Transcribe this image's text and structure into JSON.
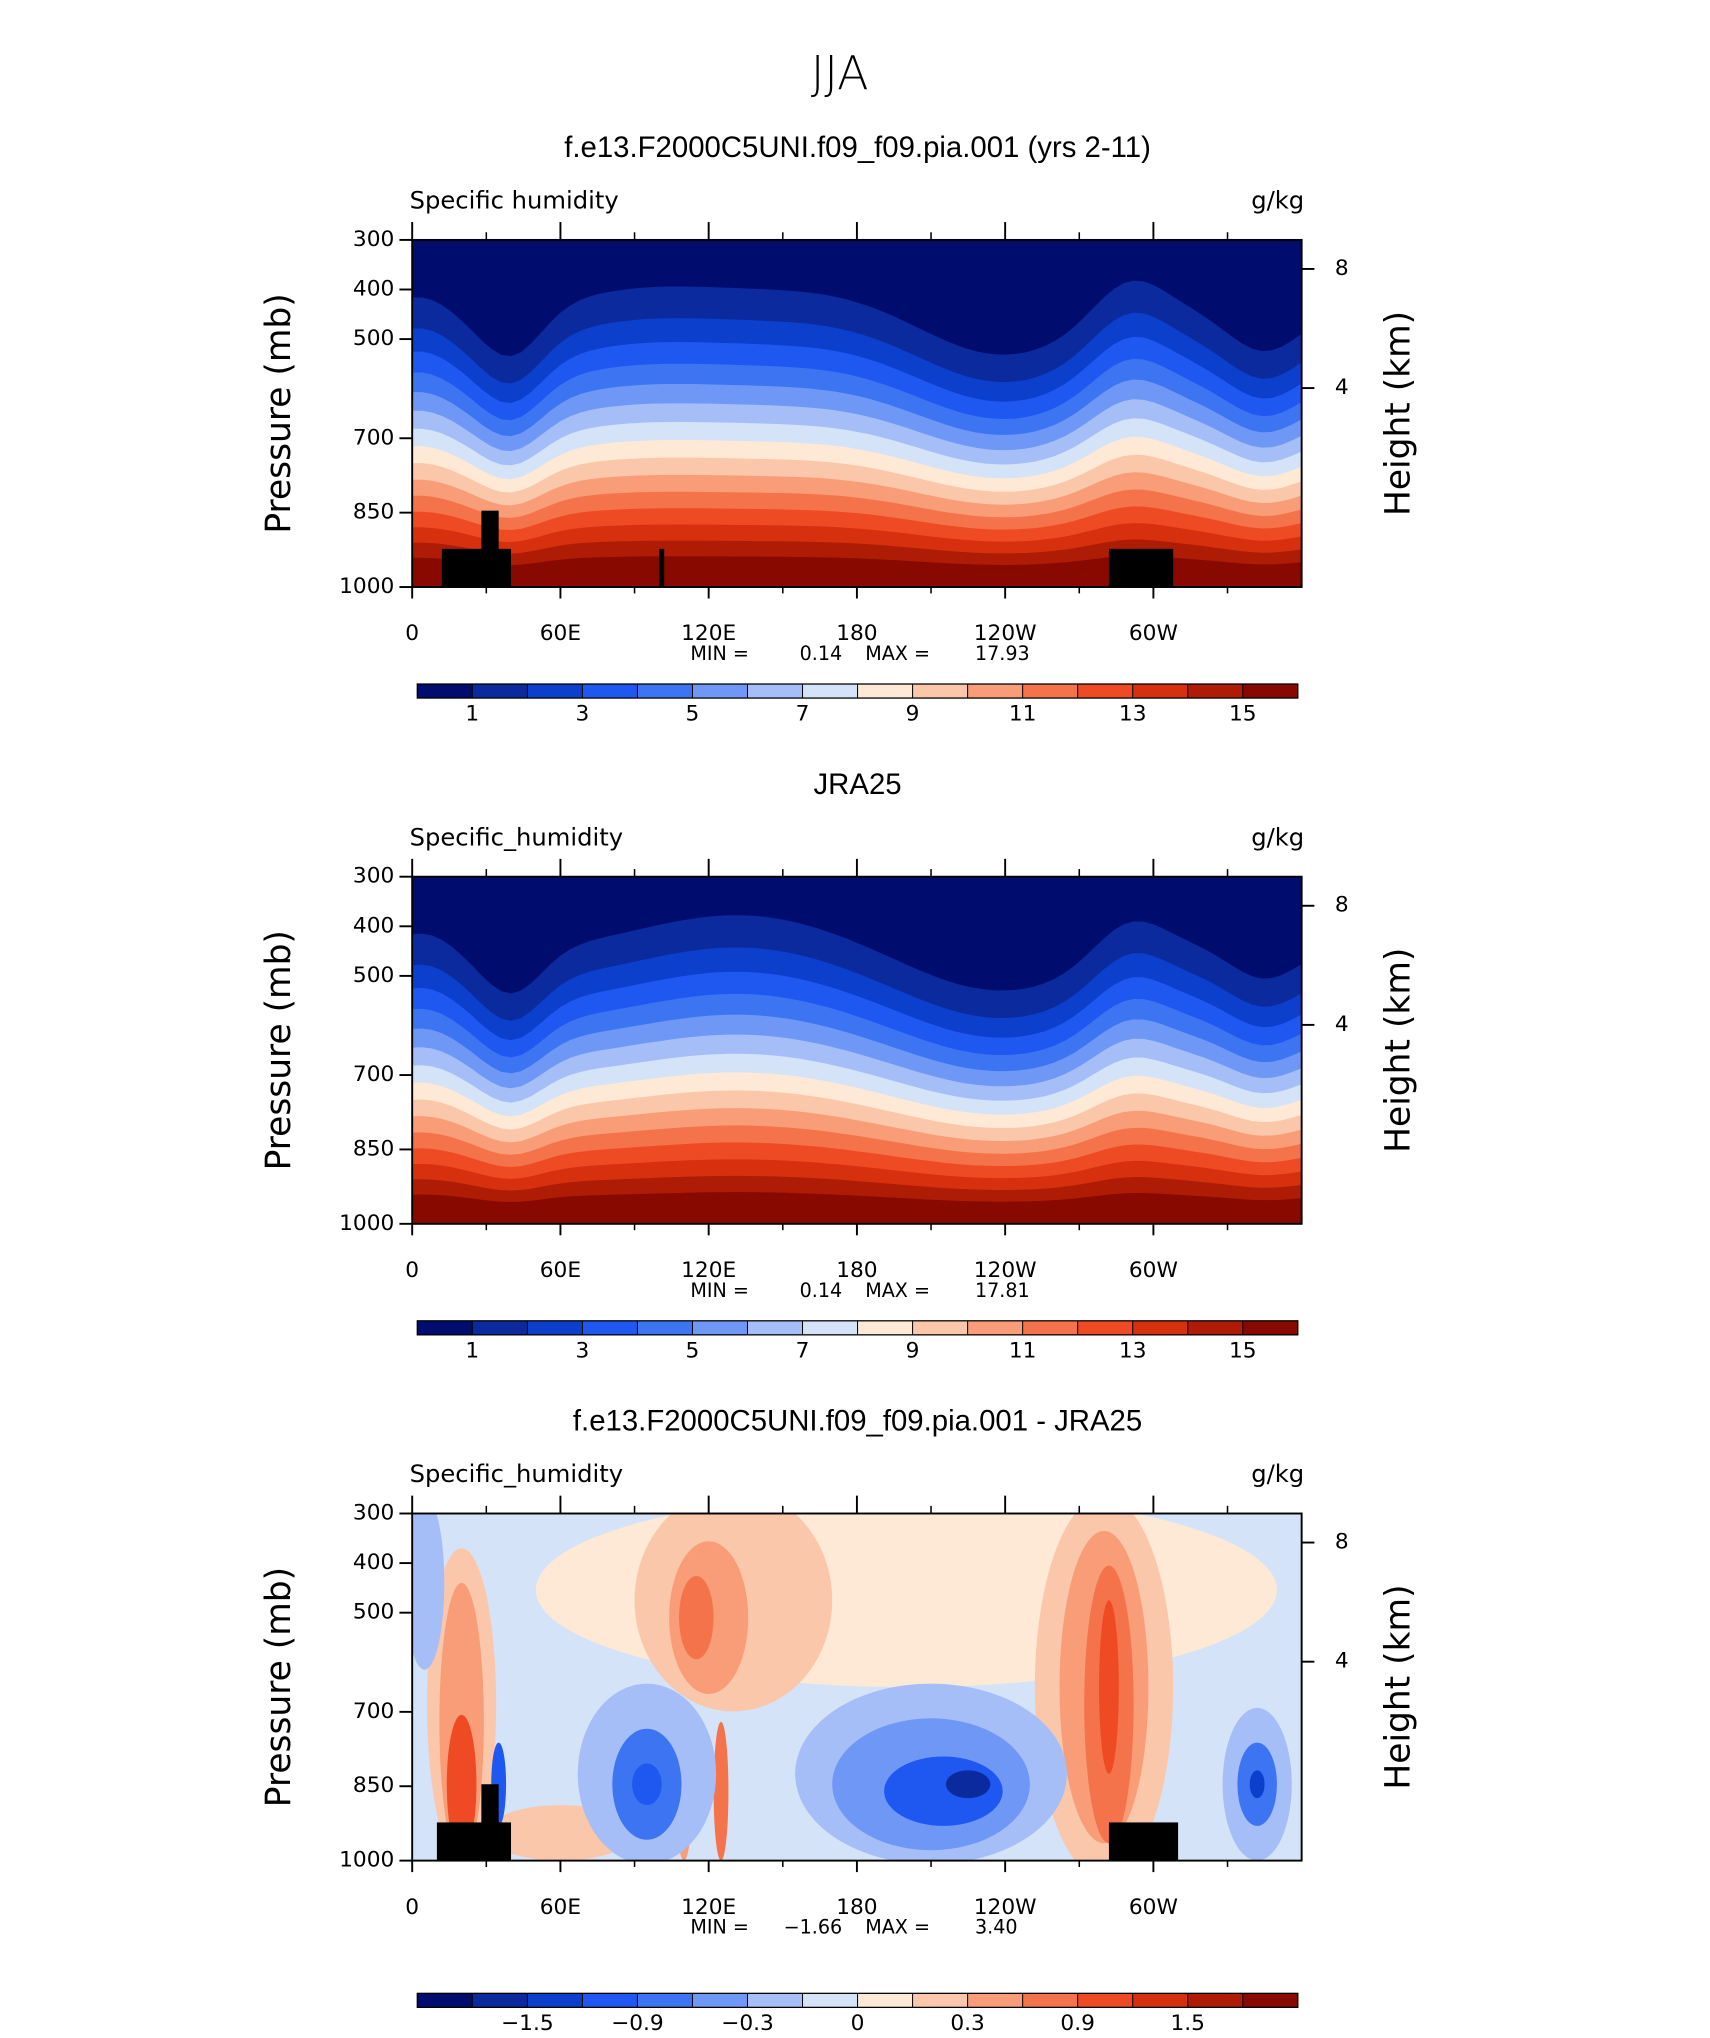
{
  "page_title": "JJA",
  "chart_data": [
    {
      "type": "contour",
      "title": "f.e13.F2000C5UNI.f09_f09.pia.001 (yrs 2-11)",
      "left_label": "Specific humidity",
      "right_label": "g/kg",
      "ylabel": "Pressure (mb)",
      "y2label": "Height (km)",
      "xlim": [
        0,
        360
      ],
      "xticks": [
        0,
        {
          "value": 60,
          "label": "60E"
        },
        {
          "value": 120,
          "label": "120E"
        },
        180,
        {
          "value": 240,
          "label": "120W"
        },
        {
          "value": 300,
          "label": "60W"
        }
      ],
      "xminorticks": [
        30,
        90,
        150,
        210,
        270,
        330
      ],
      "ylim": [
        300,
        1000
      ],
      "yticks": [
        300,
        400,
        500,
        700,
        850,
        1000
      ],
      "y_inverted": true,
      "y2ticks": [
        8,
        4
      ],
      "min_label": "MIN =",
      "min": 0.14,
      "max_label": "MAX =",
      "max": 17.93,
      "levels": [
        1,
        2,
        3,
        4,
        5,
        6,
        7,
        8,
        9,
        10,
        11,
        12,
        13,
        14,
        15
      ],
      "colorbar_ticks": [
        1,
        3,
        5,
        7,
        9,
        11,
        13,
        15
      ],
      "colors": [
        "#000d6e",
        "#0a2a9e",
        "#0b3fcc",
        "#1f58f0",
        "#3d74f2",
        "#6f97f5",
        "#a5bef7",
        "#d4e3f7",
        "#fde9d6",
        "#fbc7aa",
        "#f89d77",
        "#f4734b",
        "#ee4b25",
        "#d6300f",
        "#ae1c06",
        "#880900"
      ]
    },
    {
      "type": "contour",
      "title": "JRA25",
      "left_label": "Specific_humidity",
      "right_label": "g/kg",
      "ylabel": "Pressure (mb)",
      "y2label": "Height (km)",
      "xlim": [
        0,
        360
      ],
      "xticks": [
        0,
        {
          "value": 60,
          "label": "60E"
        },
        {
          "value": 120,
          "label": "120E"
        },
        180,
        {
          "value": 240,
          "label": "120W"
        },
        {
          "value": 300,
          "label": "60W"
        }
      ],
      "xminorticks": [
        30,
        90,
        150,
        210,
        270,
        330
      ],
      "ylim": [
        300,
        1000
      ],
      "yticks": [
        300,
        400,
        500,
        700,
        850,
        1000
      ],
      "y_inverted": true,
      "y2ticks": [
        8,
        4
      ],
      "min_label": "MIN =",
      "min": 0.14,
      "max_label": "MAX =",
      "max": 17.81,
      "levels": [
        1,
        2,
        3,
        4,
        5,
        6,
        7,
        8,
        9,
        10,
        11,
        12,
        13,
        14,
        15
      ],
      "colorbar_ticks": [
        1,
        3,
        5,
        7,
        9,
        11,
        13,
        15
      ],
      "colors": [
        "#000d6e",
        "#0a2a9e",
        "#0b3fcc",
        "#1f58f0",
        "#3d74f2",
        "#6f97f5",
        "#a5bef7",
        "#d4e3f7",
        "#fde9d6",
        "#fbc7aa",
        "#f89d77",
        "#f4734b",
        "#ee4b25",
        "#d6300f",
        "#ae1c06",
        "#880900"
      ]
    },
    {
      "type": "contour",
      "title": "f.e13.F2000C5UNI.f09_f09.pia.001 - JRA25",
      "left_label": "Specific_humidity",
      "right_label": "g/kg",
      "ylabel": "Pressure (mb)",
      "y2label": "Height (km)",
      "xlim": [
        0,
        360
      ],
      "xticks": [
        0,
        {
          "value": 60,
          "label": "60E"
        },
        {
          "value": 120,
          "label": "120E"
        },
        180,
        {
          "value": 240,
          "label": "120W"
        },
        {
          "value": 300,
          "label": "60W"
        }
      ],
      "xminorticks": [
        30,
        90,
        150,
        210,
        270,
        330
      ],
      "ylim": [
        300,
        1000
      ],
      "yticks": [
        300,
        400,
        500,
        700,
        850,
        1000
      ],
      "y_inverted": true,
      "y2ticks": [
        8,
        4
      ],
      "min_label": "MIN =",
      "min": {
        "value": -1.66,
        "label": "−1.66"
      },
      "max_label": "MAX =",
      "max": {
        "value": 3.4,
        "label": "3.40"
      },
      "levels": [
        -1.8,
        -1.5,
        -1.2,
        -0.9,
        -0.6,
        -0.3,
        -0.1,
        0,
        0.1,
        0.3,
        0.6,
        0.9,
        1.2,
        1.5,
        1.8
      ],
      "colorbar_ticks": [
        {
          "value": -1.5,
          "label": "−1.5"
        },
        {
          "value": -0.9,
          "label": "−0.9"
        },
        {
          "value": -0.3,
          "label": "−0.3"
        },
        0,
        0.3,
        0.9,
        1.5
      ],
      "colors": [
        "#000d6e",
        "#0a2a9e",
        "#0b3fcc",
        "#1f58f0",
        "#3d74f2",
        "#6f97f5",
        "#a5bef7",
        "#d4e3f7",
        "#fde9d6",
        "#fbc7aa",
        "#f89d77",
        "#f4734b",
        "#ee4b25",
        "#d6300f",
        "#ae1c06",
        "#880900"
      ]
    }
  ]
}
